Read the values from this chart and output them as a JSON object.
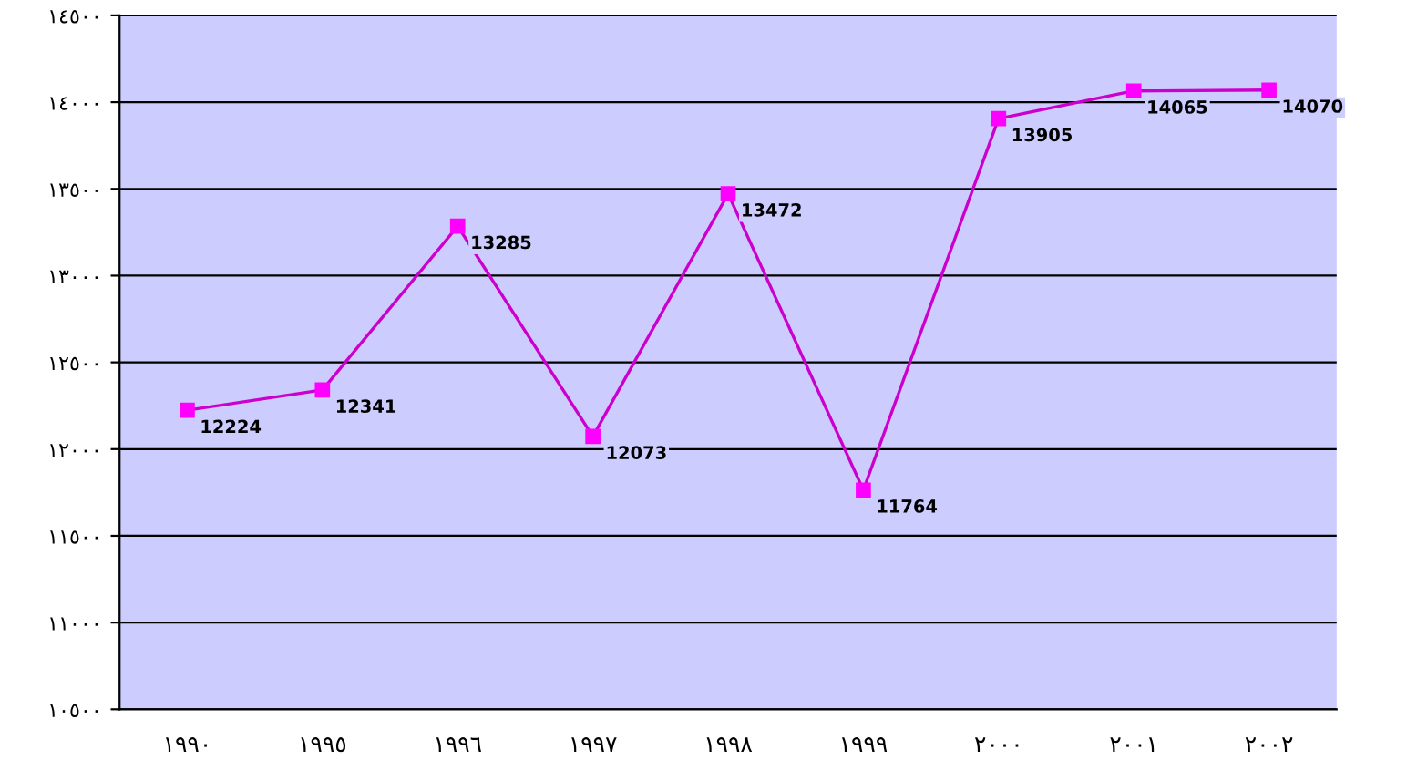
{
  "chart_data": {
    "type": "line",
    "categories": [
      "١٩٩٠",
      "١٩٩٥",
      "١٩٩٦",
      "١٩٩٧",
      "١٩٩٨",
      "١٩٩٩",
      "٢٠٠٠",
      "٢٠٠١",
      "٢٠٠٢"
    ],
    "series": [
      {
        "color": "#cc00cc",
        "values": [
          12224,
          12341,
          13285,
          12073,
          13472,
          11764,
          13905,
          14065,
          14070
        ]
      }
    ],
    "ylim": [
      10500,
      14500
    ],
    "yticks": [
      {
        "value": 10500,
        "label": "١٠٥٠٠"
      },
      {
        "value": 11000,
        "label": "١١٠٠٠"
      },
      {
        "value": 11500,
        "label": "١١٥٠٠"
      },
      {
        "value": 12000,
        "label": "١٢٠٠٠"
      },
      {
        "value": 12500,
        "label": "١٢٥٠٠"
      },
      {
        "value": 13000,
        "label": "١٣٠٠٠"
      },
      {
        "value": 13500,
        "label": "١٣٥٠٠"
      },
      {
        "value": 14000,
        "label": "١٤٠٠٠"
      },
      {
        "value": 14500,
        "label": "١٤٥٠٠"
      }
    ],
    "grid": "y",
    "marker": "square",
    "line_style": "solid",
    "data_labels": true
  }
}
